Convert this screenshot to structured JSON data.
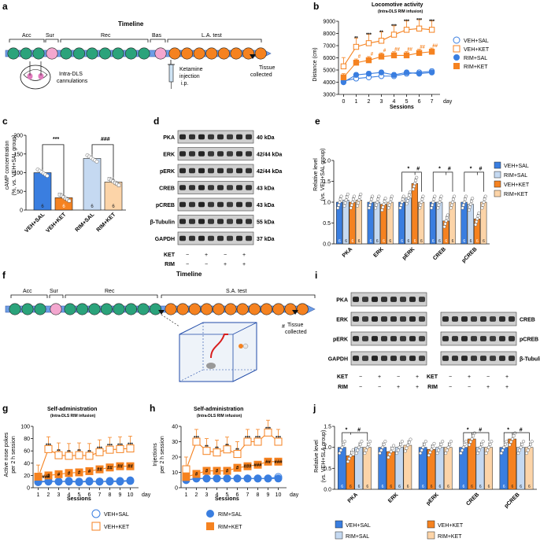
{
  "colors": {
    "blue": "#3a7ee0",
    "lightblue": "#c5d9f1",
    "orange": "#f58220",
    "lightorange": "#fcd4a8",
    "circle_green": "#2ba37b",
    "circle_pink": "#f3a7cf",
    "arrow_blue": "#6d9ee6"
  },
  "panel_a": {
    "label": "a",
    "title": "Timeline",
    "phases": [
      "Acc",
      "Sur",
      "Rec",
      "Bas",
      "L.A. test"
    ],
    "cannula_label_1": "Intra-DLS",
    "cannula_label_2": "cannulations",
    "ketamine_label_1": "Ketamine",
    "ketamine_label_2": "injection",
    "ketamine_label_3": "i.p.",
    "tissue_label_1": "Tissue",
    "tissue_label_2": "collected"
  },
  "panel_b": {
    "label": "b",
    "title": "Locomotive activity",
    "subtitle": "(Intra-DLS RIM infusion)",
    "ylabel": "Distance (cm)",
    "xlabel": "Sessions",
    "xunit": "day",
    "legend": [
      "VEH+SAL",
      "VEH+KET",
      "RIM+SAL",
      "RIM+KET"
    ],
    "upper_stars": [
      "**",
      "***",
      "**",
      "***",
      "***",
      "***",
      "***"
    ],
    "lower_marks": [
      "#",
      "#",
      "#",
      "##",
      "##",
      "##",
      "##"
    ]
  },
  "panel_c": {
    "label": "c",
    "ylabel_1": "cAMP concentration",
    "ylabel_2": "(%, vs. VEH+SAL group)",
    "groups": [
      "VEH+SAL",
      "VEH+KET",
      "RIM+SAL",
      "RIM+KET"
    ],
    "n": [
      "6",
      "6",
      "6",
      "6"
    ],
    "sig_1": "***",
    "sig_2": "###"
  },
  "panel_d": {
    "label": "d",
    "proteins": [
      "PKA",
      "ERK",
      "pERK",
      "CREB",
      "pCREB",
      "β-Tubulin",
      "GAPDH"
    ],
    "sizes": [
      "40 kDa",
      "42/44 kDa",
      "42/44 kDa",
      "43 kDa",
      "43 kDa",
      "55 kDa",
      "37 kDa"
    ],
    "row_ket": "KET",
    "row_rim": "RIM",
    "ket_signs": [
      "−",
      "+",
      "−",
      "+"
    ],
    "rim_signs": [
      "−",
      "−",
      "+",
      "+"
    ]
  },
  "panel_e": {
    "label": "e",
    "ylabel_1": "Relative level",
    "ylabel_2": "(vs. VEH+SAL group)",
    "categories": [
      "PKA",
      "ERK",
      "pERK",
      "CREB",
      "pCREB"
    ],
    "legend": [
      "VEH+SAL",
      "RIM+SAL",
      "VEH+KET",
      "RIM+KET"
    ],
    "n": "6",
    "sig_star": "*",
    "sig_hash": "#"
  },
  "panel_f": {
    "label": "f",
    "title": "Timeline",
    "phases": [
      "Acc",
      "Sur",
      "Rec",
      "S.A. test"
    ],
    "tissue_mark": "#",
    "tissue_label_1": "Tissue",
    "tissue_label_2": "collected"
  },
  "panel_g": {
    "label": "g",
    "title": "Self-administration",
    "subtitle": "(Intra-DLS RIM infusion)",
    "ylabel_1": "Active nose pokes",
    "ylabel_2": "per 2 h session",
    "xlabel": "Sessions",
    "xunit": "day"
  },
  "panel_h": {
    "label": "h",
    "title": "Self-administration",
    "subtitle": "(Intra-DLS RIM infusion)",
    "ylabel_1": "Injections",
    "ylabel_2": "per 2 h session",
    "xlabel": "Sessions",
    "xunit": "day"
  },
  "legend_gh": [
    "VEH+SAL",
    "VEH+KET",
    "RIM+SAL",
    "RIM+KET"
  ],
  "panel_i": {
    "label": "i",
    "left_proteins": [
      "PKA",
      "ERK",
      "pERK",
      "GAPDH"
    ],
    "right_proteins": [
      "CREB",
      "pCREB",
      "β-Tubulin"
    ],
    "row_ket": "KET",
    "row_rim": "RIM",
    "ket_signs": [
      "−",
      "+",
      "−",
      "+"
    ],
    "rim_signs": [
      "−",
      "−",
      "+",
      "+"
    ]
  },
  "panel_j": {
    "label": "j",
    "ylabel_1": "Relative level",
    "ylabel_2": "(vs. VEH+SLA group)",
    "categories": [
      "PKA",
      "ERK",
      "pERK",
      "CREB",
      "pCREB"
    ],
    "legend": [
      "VEH+SAL",
      "VEH+KET",
      "RIM+SAL",
      "RIM+KET"
    ],
    "n": "6",
    "sig_star": "*",
    "sig_hash": "#"
  },
  "chart_data": [
    {
      "type": "line",
      "panel": "b",
      "x": [
        0,
        1,
        2,
        3,
        4,
        5,
        6,
        7
      ],
      "ylim": [
        3000,
        9000
      ],
      "yticks": [
        3000,
        4000,
        5000,
        6000,
        7000,
        8000,
        9000
      ],
      "series": [
        {
          "name": "VEH+SAL",
          "values": [
            4100,
            4300,
            4400,
            4500,
            4500,
            4700,
            4800,
            4900
          ]
        },
        {
          "name": "VEH+KET",
          "values": [
            5300,
            6900,
            7200,
            7400,
            7900,
            8300,
            8400,
            8300
          ]
        },
        {
          "name": "RIM+SAL",
          "values": [
            4000,
            4600,
            4700,
            4800,
            4600,
            4800,
            4700,
            4800
          ]
        },
        {
          "name": "RIM+KET",
          "values": [
            4400,
            5600,
            5800,
            6100,
            6200,
            6200,
            6400,
            6500
          ]
        }
      ]
    },
    {
      "type": "bar",
      "panel": "c",
      "categories": [
        "VEH+SAL",
        "VEH+KET",
        "RIM+SAL",
        "RIM+KET"
      ],
      "values": [
        100,
        33,
        138,
        75
      ],
      "ylim": [
        0,
        200
      ],
      "yticks": [
        0,
        50,
        100,
        150,
        200
      ]
    },
    {
      "type": "bar",
      "panel": "e",
      "categories": [
        "PKA",
        "ERK",
        "pERK",
        "CREB",
        "pCREB"
      ],
      "ylim": [
        0,
        2.0
      ],
      "yticks": [
        0,
        0.5,
        1.0,
        1.5,
        2.0
      ],
      "series": [
        {
          "name": "VEH+SAL",
          "values": [
            1.0,
            1.0,
            1.0,
            1.0,
            1.0
          ]
        },
        {
          "name": "RIM+SAL",
          "values": [
            1.05,
            1.0,
            1.1,
            1.0,
            0.95
          ]
        },
        {
          "name": "VEH+KET",
          "values": [
            1.0,
            0.95,
            1.45,
            0.55,
            0.6
          ]
        },
        {
          "name": "RIM+KET",
          "values": [
            1.05,
            1.0,
            1.0,
            1.0,
            1.0
          ]
        }
      ]
    },
    {
      "type": "line",
      "panel": "g",
      "x": [
        1,
        2,
        3,
        4,
        5,
        6,
        7,
        8,
        9,
        10
      ],
      "ylim": [
        0,
        100
      ],
      "yticks": [
        0,
        20,
        40,
        60,
        80,
        100
      ],
      "series": [
        {
          "name": "VEH+SAL",
          "values": [
            10,
            11,
            10,
            11,
            10,
            11,
            10,
            11,
            11,
            12
          ]
        },
        {
          "name": "VEH+KET",
          "values": [
            17,
            63,
            53,
            52,
            53,
            52,
            58,
            62,
            63,
            64
          ]
        },
        {
          "name": "RIM+SAL",
          "values": [
            9,
            10,
            10,
            10,
            9,
            10,
            10,
            10,
            10,
            11
          ]
        },
        {
          "name": "RIM+KET",
          "values": [
            18,
            20,
            22,
            24,
            25,
            27,
            30,
            33,
            35,
            35
          ]
        }
      ]
    },
    {
      "type": "line",
      "panel": "h",
      "x": [
        1,
        2,
        3,
        4,
        5,
        6,
        7,
        8,
        9,
        10
      ],
      "ylim": [
        0,
        40
      ],
      "yticks": [
        0,
        10,
        20,
        30,
        40
      ],
      "series": [
        {
          "name": "VEH+SAL",
          "values": [
            5,
            6,
            6,
            6,
            6,
            6,
            6,
            6,
            6,
            7
          ]
        },
        {
          "name": "VEH+KET",
          "values": [
            12,
            30,
            24,
            23,
            25,
            22,
            30,
            30,
            36,
            30
          ]
        },
        {
          "name": "RIM+SAL",
          "values": [
            5,
            6,
            6,
            6,
            6,
            6,
            6,
            6,
            6,
            6
          ]
        },
        {
          "name": "RIM+KET",
          "values": [
            7,
            9,
            11,
            11,
            11,
            13,
            14,
            15,
            17,
            17
          ]
        }
      ]
    },
    {
      "type": "bar",
      "panel": "j",
      "categories": [
        "PKA",
        "ERK",
        "pERK",
        "CREB",
        "pCREB"
      ],
      "ylim": [
        0,
        1.5
      ],
      "yticks": [
        0,
        0.5,
        1.0,
        1.5
      ],
      "series": [
        {
          "name": "VEH+SAL",
          "values": [
            1.0,
            1.0,
            1.0,
            1.0,
            1.0
          ]
        },
        {
          "name": "VEH+KET",
          "values": [
            0.8,
            0.9,
            0.95,
            1.2,
            1.2
          ]
        },
        {
          "name": "RIM+SAL",
          "values": [
            1.0,
            1.0,
            1.0,
            1.0,
            1.0
          ]
        },
        {
          "name": "RIM+KET",
          "values": [
            1.0,
            1.05,
            1.0,
            1.0,
            1.0
          ]
        }
      ]
    }
  ]
}
